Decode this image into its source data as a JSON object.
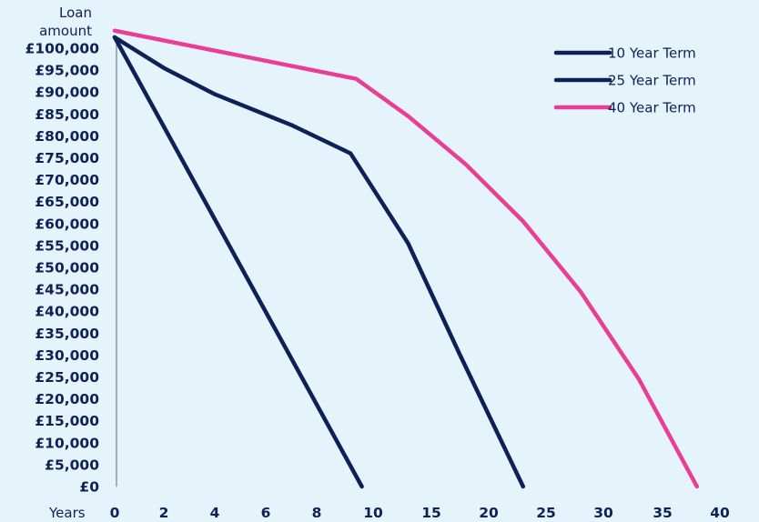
{
  "chart_data": {
    "type": "line",
    "title": "",
    "ylabel": "Loan amount",
    "ylabel_lines": [
      "Loan",
      "amount"
    ],
    "xlabel": "Years",
    "ylim": [
      0,
      105000
    ],
    "y_ticks": [
      "£0",
      "£5,000",
      "£10,000",
      "£15,000",
      "£20,000",
      "£25,000",
      "£30,000",
      "£35,000",
      "£40,000",
      "£45,000",
      "£50,000",
      "£55,000",
      "£60,000",
      "£65,000",
      "£70,000",
      "£75,000",
      "£80,000",
      "£85,000",
      "£90,000",
      "£95,000",
      "£100,000"
    ],
    "x_ticks": [
      "0",
      "2",
      "4",
      "6",
      "8",
      "10",
      "15",
      "20",
      "25",
      "30",
      "35",
      "40"
    ],
    "legend_position": "top-right",
    "series": [
      {
        "name": "10 Year Term",
        "color": "#0d2157",
        "points": [
          [
            0,
            102500
          ],
          [
            9.6,
            0
          ]
        ]
      },
      {
        "name": "25 Year Term",
        "color": "#0d2157",
        "points": [
          [
            0,
            102500
          ],
          [
            2,
            95500
          ],
          [
            4,
            89500
          ],
          [
            7,
            82500
          ],
          [
            9.2,
            76000
          ],
          [
            13,
            55500
          ],
          [
            17.5,
            30000
          ],
          [
            23,
            0
          ]
        ]
      },
      {
        "name": "40 Year Term",
        "color": "#e83e96",
        "points": [
          [
            0,
            104000
          ],
          [
            9.4,
            93000
          ],
          [
            13,
            84500
          ],
          [
            18,
            73500
          ],
          [
            23,
            60500
          ],
          [
            28,
            44500
          ],
          [
            33,
            24500
          ],
          [
            38,
            0
          ]
        ]
      }
    ]
  }
}
